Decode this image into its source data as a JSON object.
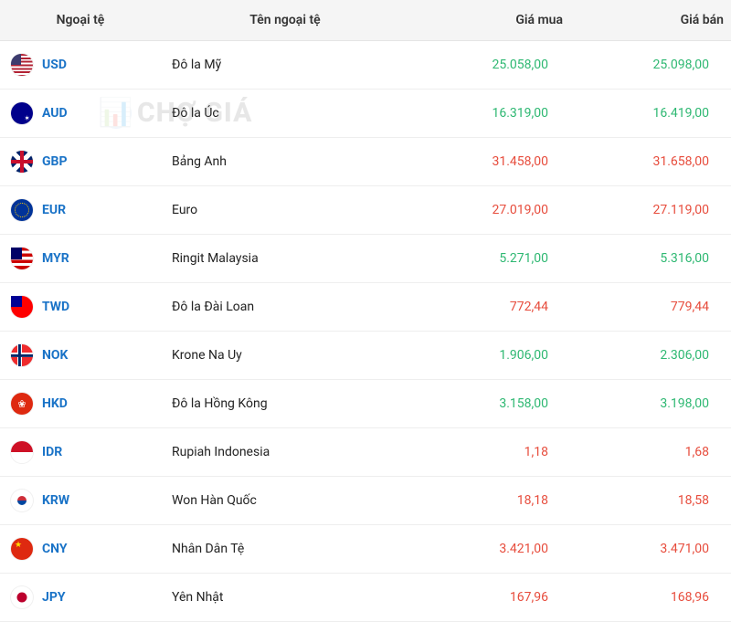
{
  "columns": {
    "code": "Ngoại tệ",
    "name": "Tên ngoại tệ",
    "buy": "Giá mua",
    "sell": "Giá bán"
  },
  "watermark": "CHỢ GIÁ",
  "colors": {
    "positive": "#2eb872",
    "negative": "#e74c3c",
    "link": "#1a73c7",
    "header_bg": "#f5f5f5",
    "border": "#eeeeee"
  },
  "rows": [
    {
      "code": "USD",
      "flag": "flag-usd",
      "name": "Đô la Mỹ",
      "buy": "25.058,00",
      "sell": "25.098,00",
      "buy_dir": "pos",
      "sell_dir": "pos"
    },
    {
      "code": "AUD",
      "flag": "flag-aud",
      "name": "Đô la Úc",
      "buy": "16.319,00",
      "sell": "16.419,00",
      "buy_dir": "pos",
      "sell_dir": "pos"
    },
    {
      "code": "GBP",
      "flag": "flag-gbp",
      "name": "Bảng Anh",
      "buy": "31.458,00",
      "sell": "31.658,00",
      "buy_dir": "neg",
      "sell_dir": "neg"
    },
    {
      "code": "EUR",
      "flag": "flag-eur",
      "name": "Euro",
      "buy": "27.019,00",
      "sell": "27.119,00",
      "buy_dir": "neg",
      "sell_dir": "neg"
    },
    {
      "code": "MYR",
      "flag": "flag-myr",
      "name": "Ringit Malaysia",
      "buy": "5.271,00",
      "sell": "5.316,00",
      "buy_dir": "pos",
      "sell_dir": "pos"
    },
    {
      "code": "TWD",
      "flag": "flag-twd",
      "name": "Đô la Đài Loan",
      "buy": "772,44",
      "sell": "779,44",
      "buy_dir": "neg",
      "sell_dir": "neg"
    },
    {
      "code": "NOK",
      "flag": "flag-nok",
      "name": "Krone Na Uy",
      "buy": "1.906,00",
      "sell": "2.306,00",
      "buy_dir": "pos",
      "sell_dir": "pos"
    },
    {
      "code": "HKD",
      "flag": "flag-hkd",
      "name": "Đô la Hồng Kông",
      "buy": "3.158,00",
      "sell": "3.198,00",
      "buy_dir": "pos",
      "sell_dir": "pos"
    },
    {
      "code": "IDR",
      "flag": "flag-idr",
      "name": "Rupiah Indonesia",
      "buy": "1,18",
      "sell": "1,68",
      "buy_dir": "neg",
      "sell_dir": "neg"
    },
    {
      "code": "KRW",
      "flag": "flag-krw",
      "name": "Won Hàn Quốc",
      "buy": "18,18",
      "sell": "18,58",
      "buy_dir": "neg",
      "sell_dir": "neg"
    },
    {
      "code": "CNY",
      "flag": "flag-cny",
      "name": "Nhân Dân Tệ",
      "buy": "3.421,00",
      "sell": "3.471,00",
      "buy_dir": "neg",
      "sell_dir": "neg"
    },
    {
      "code": "JPY",
      "flag": "flag-jpy",
      "name": "Yên Nhật",
      "buy": "167,96",
      "sell": "168,96",
      "buy_dir": "neg",
      "sell_dir": "neg"
    }
  ]
}
